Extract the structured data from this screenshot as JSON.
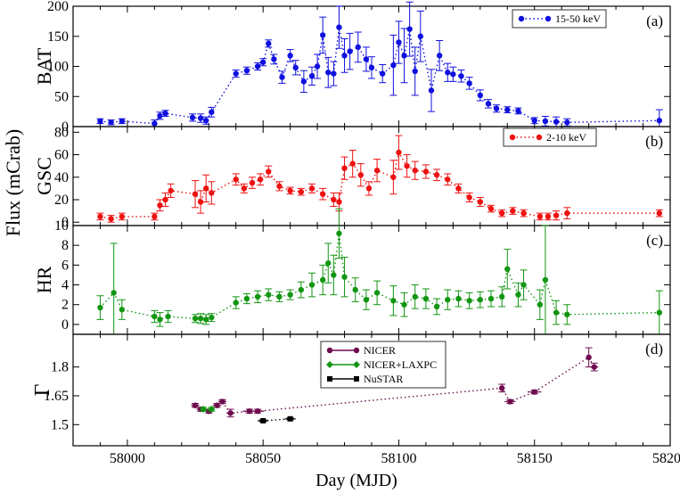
{
  "figure": {
    "shared_ylabel": "Flux (mCrab)",
    "xlabel": "Day (MJD)",
    "xlim": [
      57980,
      58200
    ],
    "xticks": [
      58000,
      58050,
      58100,
      58150,
      58200
    ],
    "xtick_labels": [
      "58000",
      "58050",
      "58100",
      "58150",
      "58200"
    ]
  },
  "chart_data": [
    {
      "type": "line",
      "id": "bat",
      "panel_label": "(a)",
      "ylabel": "BAT",
      "ylim": [
        0,
        200
      ],
      "yticks": [
        0,
        50,
        100,
        150,
        200
      ],
      "ytick_labels": [
        "0",
        "50",
        "100",
        "150",
        "200"
      ],
      "color": "#1010e0",
      "legend": [
        "15-50 keV"
      ],
      "series": [
        {
          "name": "15-50 keV",
          "x": [
            57990,
            57994,
            57998,
            58010,
            58012,
            58014,
            58024,
            58027,
            58029,
            58031,
            58040,
            58044,
            58048,
            58050,
            58052,
            58054,
            58057,
            58060,
            58062,
            58065,
            58068,
            58070,
            58072,
            58074,
            58076,
            58078,
            58080,
            58082,
            58085,
            58088,
            58090,
            58094,
            58098,
            58100,
            58102,
            58104,
            58106,
            58108,
            58112,
            58115,
            58118,
            58120,
            58123,
            58126,
            58130,
            58133,
            58136,
            58140,
            58144,
            58150,
            58154,
            58158,
            58162,
            58196
          ],
          "y": [
            9,
            7,
            9,
            5,
            18,
            22,
            15,
            14,
            10,
            24,
            88,
            93,
            100,
            107,
            138,
            112,
            82,
            118,
            98,
            75,
            84,
            100,
            152,
            90,
            88,
            165,
            118,
            125,
            132,
            112,
            98,
            88,
            102,
            140,
            118,
            162,
            92,
            150,
            60,
            118,
            90,
            87,
            84,
            72,
            52,
            38,
            30,
            28,
            26,
            10,
            9,
            8,
            7,
            10
          ],
          "yerr": [
            4,
            4,
            4,
            6,
            6,
            5,
            6,
            7,
            6,
            8,
            6,
            6,
            6,
            6,
            6,
            8,
            10,
            10,
            12,
            18,
            15,
            20,
            30,
            25,
            20,
            35,
            28,
            30,
            25,
            20,
            18,
            15,
            50,
            35,
            45,
            45,
            40,
            42,
            35,
            25,
            15,
            12,
            10,
            10,
            9,
            7,
            6,
            5,
            5,
            5,
            8,
            8,
            6,
            18
          ]
        }
      ]
    },
    {
      "type": "line",
      "id": "gsc",
      "panel_label": "(b)",
      "ylabel": "GSC",
      "ylim": [
        -3,
        85
      ],
      "yticks": [
        0,
        20,
        40,
        60,
        80
      ],
      "ytick_labels": [
        "0",
        "20",
        "40",
        "60",
        "80"
      ],
      "color": "#ee1111",
      "legend": [
        "2-10 keV"
      ],
      "series": [
        {
          "name": "2-10 keV",
          "x": [
            57990,
            57994,
            57998,
            58010,
            58012,
            58014,
            58016,
            58025,
            58027,
            58029,
            58031,
            58040,
            58043,
            58046,
            58049,
            58052,
            58056,
            58060,
            58064,
            58068,
            58072,
            58076,
            58078,
            58080,
            58083,
            58086,
            58089,
            58092,
            58098,
            58100,
            58103,
            58106,
            58110,
            58114,
            58118,
            58122,
            58126,
            58130,
            58134,
            58138,
            58142,
            58146,
            58152,
            58155,
            58158,
            58162,
            58196
          ],
          "y": [
            5,
            3,
            5,
            5,
            15,
            20,
            28,
            25,
            18,
            30,
            26,
            38,
            30,
            35,
            38,
            45,
            32,
            28,
            27,
            30,
            25,
            20,
            18,
            48,
            52,
            42,
            30,
            46,
            40,
            62,
            50,
            46,
            45,
            42,
            38,
            30,
            22,
            18,
            12,
            8,
            10,
            8,
            5,
            5,
            6,
            8,
            8
          ],
          "yerr": [
            3,
            3,
            3,
            3,
            5,
            6,
            6,
            12,
            10,
            12,
            10,
            5,
            4,
            5,
            5,
            5,
            4,
            3,
            3,
            4,
            5,
            6,
            8,
            10,
            12,
            10,
            6,
            10,
            15,
            15,
            10,
            8,
            6,
            5,
            5,
            4,
            4,
            4,
            3,
            3,
            3,
            3,
            3,
            3,
            4,
            5,
            3
          ]
        }
      ]
    },
    {
      "type": "line",
      "id": "hr",
      "panel_label": "(c)",
      "ylabel": "HR",
      "ylim": [
        -1,
        10
      ],
      "yticks": [
        0,
        2,
        4,
        6,
        8,
        10
      ],
      "ytick_labels": [
        "0",
        "2",
        "4",
        "6",
        "8",
        "10"
      ],
      "color": "#129612",
      "legend": [],
      "series": [
        {
          "name": "HR",
          "x": [
            57990,
            57995,
            57998,
            58010,
            58012,
            58015,
            58025,
            58027,
            58029,
            58031,
            58040,
            58044,
            58048,
            58052,
            58056,
            58060,
            58064,
            58068,
            58072,
            58074,
            58076,
            58078,
            58080,
            58084,
            58088,
            58092,
            58098,
            58102,
            58106,
            58110,
            58114,
            58118,
            58122,
            58126,
            58130,
            58134,
            58138,
            58140,
            58144,
            58146,
            58152,
            58154,
            58158,
            58162,
            58196
          ],
          "y": [
            1.7,
            3.2,
            1.5,
            0.8,
            0.5,
            0.8,
            0.6,
            0.6,
            0.5,
            0.7,
            2.2,
            2.6,
            2.8,
            3.0,
            2.8,
            3.0,
            3.5,
            4.0,
            4.5,
            6.2,
            5.0,
            9.2,
            4.8,
            3.5,
            2.5,
            3.2,
            2.4,
            2.0,
            2.8,
            2.6,
            1.8,
            2.5,
            2.6,
            2.4,
            2.5,
            2.6,
            2.8,
            5.6,
            3.0,
            4.0,
            2.0,
            4.5,
            1.2,
            1.0,
            1.2
          ],
          "yerr": [
            1.2,
            5.0,
            1.0,
            0.6,
            0.7,
            0.6,
            0.4,
            0.5,
            0.5,
            0.4,
            0.6,
            0.5,
            0.6,
            0.6,
            0.5,
            0.5,
            0.8,
            1.2,
            1.5,
            2.0,
            2.0,
            2.5,
            2.0,
            1.2,
            1.0,
            1.2,
            1.5,
            1.2,
            1.2,
            1.0,
            0.8,
            1.0,
            0.8,
            0.8,
            0.8,
            0.8,
            1.0,
            2.0,
            1.2,
            1.5,
            1.5,
            5.5,
            1.2,
            1.0,
            2.2
          ]
        }
      ]
    },
    {
      "type": "line",
      "id": "gamma",
      "panel_label": "(d)",
      "ylabel": "Γ",
      "ylim": [
        1.39,
        1.97
      ],
      "yticks": [
        1.5,
        1.65,
        1.8
      ],
      "ytick_labels": [
        "1.5",
        "1.65",
        "1.8"
      ],
      "legend": [
        "NICER",
        "NICER+LAXPC",
        "NuSTAR"
      ],
      "series": [
        {
          "name": "NICER",
          "color": "#6e0c4e",
          "x": [
            58025,
            58027,
            58030,
            58033,
            58035,
            58038,
            58045,
            58048,
            58138,
            58141,
            58150,
            58170,
            58172
          ],
          "y": [
            1.6,
            1.58,
            1.57,
            1.6,
            1.62,
            1.56,
            1.57,
            1.57,
            1.69,
            1.62,
            1.67,
            1.85,
            1.8
          ],
          "xerr": [
            1.5,
            1.5,
            1.5,
            1.5,
            1.5,
            1.5,
            2.5,
            2.5,
            1.0,
            2.0,
            2.5,
            1.0,
            1.5
          ],
          "yerr": [
            0.01,
            0.01,
            0.01,
            0.01,
            0.01,
            0.02,
            0.01,
            0.01,
            0.02,
            0.01,
            0.01,
            0.05,
            0.02
          ]
        },
        {
          "name": "NICER+LAXPC",
          "color": "#129612",
          "x": [
            58028,
            58031
          ],
          "y": [
            1.58,
            1.58
          ],
          "xerr": [
            1.0,
            1.0
          ],
          "yerr": [
            0.01,
            0.01
          ]
        },
        {
          "name": "NuSTAR",
          "color": "#000000",
          "x": [
            58050,
            58060
          ],
          "y": [
            1.52,
            1.53
          ],
          "xerr": [
            2.0,
            2.0
          ],
          "yerr": [
            0.005,
            0.005
          ]
        }
      ]
    }
  ]
}
